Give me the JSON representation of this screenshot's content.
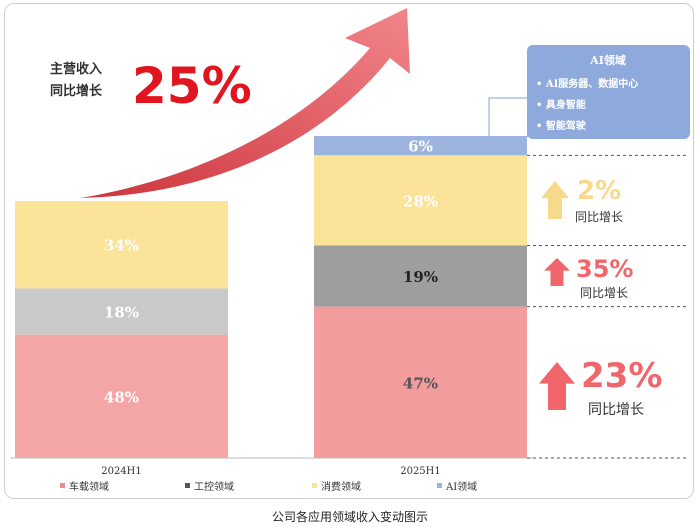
{
  "chart_data": {
    "type": "bar",
    "stacked": true,
    "categories": [
      "2024H1",
      "2025H1"
    ],
    "series": [
      {
        "name": "车载领域",
        "values": [
          48,
          47
        ],
        "labels": [
          "48%",
          "47%"
        ],
        "color": "#F4A5A5"
      },
      {
        "name": "工控领域",
        "values": [
          18,
          19
        ],
        "labels": [
          "18%",
          "19%"
        ],
        "color": "#C9C9C9"
      },
      {
        "name": "消费领域",
        "values": [
          34,
          28
        ],
        "labels": [
          "34%",
          "28%"
        ],
        "color": "#FBE39A"
      },
      {
        "name": "AI领域",
        "values": [
          0,
          6
        ],
        "labels": [
          "",
          "6%"
        ],
        "color": "#9DB5DE"
      }
    ],
    "segment_color_2025": {
      "车载领域": "#F29C9D",
      "工控领域": "#9E9E9E"
    },
    "growth_headline": {
      "line1": "主营收入",
      "line2": "同比增长",
      "value": "25%"
    },
    "growth_annotations": [
      {
        "series": "消费领域",
        "value": "2%",
        "label": "同比增长",
        "color": "#F7D98B"
      },
      {
        "series": "工控领域",
        "value": "35%",
        "label": "同比增长",
        "color": "#F0666A"
      },
      {
        "series": "车载领域",
        "value": "23%",
        "label": "同比增长",
        "color": "#F0666A"
      }
    ],
    "ai_box": {
      "title": "AI领域",
      "items": [
        "AI服务器、数据中心",
        "具身智能",
        "智能驾驶"
      ]
    },
    "legend_position": "bottom-left",
    "grid": false
  },
  "caption": "公司各应用领域收入变动图示"
}
